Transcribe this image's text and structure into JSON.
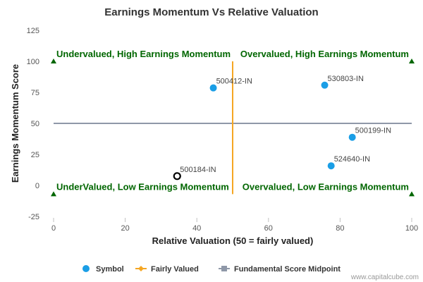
{
  "chart_data": {
    "type": "scatter",
    "title": "Earnings Momentum Vs Relative Valuation",
    "xlabel": "Relative Valuation (50 = fairly valued)",
    "ylabel": "Earnings Momentum Score",
    "xlim": [
      0,
      100
    ],
    "ylim": [
      -25,
      125
    ],
    "xticks": [
      "0",
      "20",
      "40",
      "60",
      "80",
      "100"
    ],
    "yticks": [
      "-25",
      "0",
      "25",
      "50",
      "75",
      "100",
      "125"
    ],
    "grid": false,
    "legend_position": "bottom",
    "points": [
      {
        "label": "500412-IN",
        "x": 44.6,
        "y": 78.6,
        "highlight": false
      },
      {
        "label": "530803-IN",
        "x": 75.7,
        "y": 80.8,
        "highlight": false
      },
      {
        "label": "500199-IN",
        "x": 83.4,
        "y": 38.8,
        "highlight": false
      },
      {
        "label": "524640-IN",
        "x": 77.5,
        "y": 15.8,
        "highlight": false
      },
      {
        "label": "500184-IN",
        "x": 34.5,
        "y": 7.5,
        "highlight": true
      }
    ],
    "fairly_valued_line": {
      "x": 50,
      "y_from": -7,
      "y_to": 100
    },
    "midpoint_line": {
      "y": 50,
      "x_from": 0,
      "x_to": 100
    },
    "quadrant_labels": [
      {
        "text": "Undervalued, High Earnings Momentum",
        "x": 0,
        "y": 100
      },
      {
        "text": "Overvalued, High Earnings Momentum",
        "x": 100,
        "y": 100
      },
      {
        "text": "UnderValued, Low Earnings Momentum",
        "x": 0,
        "y": -7
      },
      {
        "text": "Overvalued, Low Earnings Momentum",
        "x": 100,
        "y": -7
      }
    ],
    "legend": [
      {
        "name": "Symbol",
        "marker": "circle"
      },
      {
        "name": "Fairly Valued",
        "marker": "diamond-line"
      },
      {
        "name": "Fundamental Score Midpoint",
        "marker": "square-line"
      }
    ],
    "colors": {
      "point": "#1a9ee6",
      "highlight_stroke": "#000000",
      "fairly_valued": "#f5a623",
      "midpoint": "#8f98a8",
      "quadrant_text": "#006600",
      "corner_marker": "#006600"
    }
  },
  "credit": "www.capitalcube.com"
}
